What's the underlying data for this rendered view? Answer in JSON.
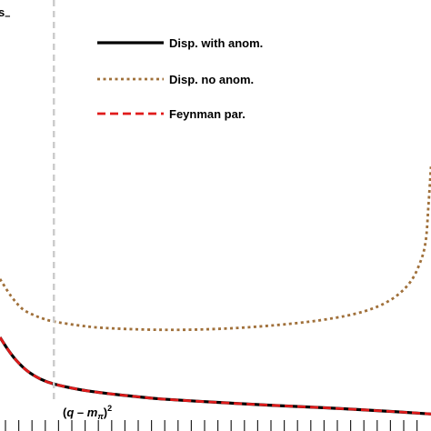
{
  "chart_data": {
    "type": "line",
    "corner_label": "s_",
    "threshold_label": "(q − m_π)²",
    "threshold_x": 0.2,
    "xlim": [
      0,
      1.6
    ],
    "ylim": [
      0,
      1.0
    ],
    "grid": false,
    "legend_position": "top-center",
    "series": [
      {
        "name": "Disp. with anom.",
        "color": "#000000",
        "style": "solid",
        "x": [
          0.0,
          0.03,
          0.06,
          0.1,
          0.15,
          0.2,
          0.3,
          0.4,
          0.5,
          0.6,
          0.8,
          1.0,
          1.2,
          1.4,
          1.6
        ],
        "y": [
          0.19,
          0.16,
          0.135,
          0.11,
          0.09,
          0.078,
          0.064,
          0.055,
          0.048,
          0.042,
          0.034,
          0.027,
          0.021,
          0.014,
          0.006
        ]
      },
      {
        "name": "Disp. no anom.",
        "color": "#a0703a",
        "style": "dotted",
        "x": [
          0.0,
          0.04,
          0.08,
          0.12,
          0.16,
          0.2,
          0.3,
          0.4,
          0.6,
          0.8,
          1.0,
          1.2,
          1.35,
          1.45,
          1.52,
          1.56,
          1.58,
          1.59,
          1.6
        ],
        "y": [
          0.33,
          0.29,
          0.26,
          0.245,
          0.235,
          0.228,
          0.218,
          0.212,
          0.208,
          0.21,
          0.218,
          0.232,
          0.252,
          0.28,
          0.32,
          0.37,
          0.42,
          0.5,
          0.6
        ]
      },
      {
        "name": "Feynman par.",
        "color": "#e01b1b",
        "style": "dashed",
        "x": [
          0.0,
          0.03,
          0.06,
          0.1,
          0.15,
          0.2,
          0.3,
          0.4,
          0.5,
          0.6,
          0.8,
          1.0,
          1.2,
          1.4,
          1.6
        ],
        "y": [
          0.19,
          0.16,
          0.135,
          0.11,
          0.09,
          0.078,
          0.064,
          0.055,
          0.048,
          0.042,
          0.034,
          0.027,
          0.021,
          0.014,
          0.006
        ]
      }
    ]
  }
}
